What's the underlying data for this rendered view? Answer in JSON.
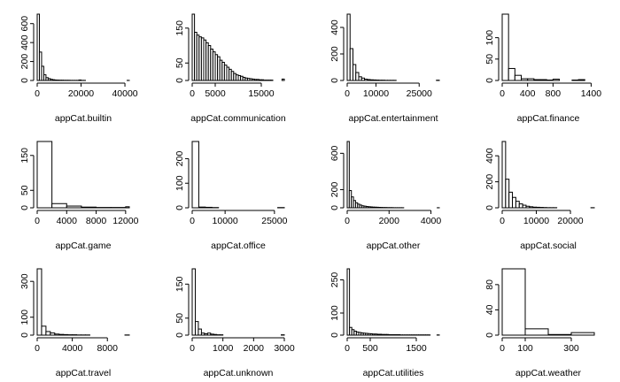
{
  "chart_data": [
    {
      "type": "histogram",
      "xlabel": "appCat.builtin",
      "ylabel": "",
      "xlim": [
        0,
        42000
      ],
      "ylim": [
        0,
        700
      ],
      "xticks": [
        0,
        20000,
        40000
      ],
      "yticks": [
        0,
        200,
        400,
        600
      ],
      "bin_edges": [
        0,
        1000,
        2000,
        3000,
        4000,
        5000,
        6000,
        7000,
        8000,
        9000,
        10000,
        11000,
        12000,
        13000,
        14000,
        15000,
        16000,
        17000,
        18000,
        19000,
        20000,
        21000,
        22000,
        23000,
        24000,
        25000,
        26000,
        27000,
        28000,
        29000,
        30000,
        31000,
        32000,
        33000,
        34000,
        35000,
        36000,
        37000,
        38000,
        39000,
        40000,
        41000,
        42000
      ],
      "counts": [
        700,
        300,
        150,
        60,
        30,
        20,
        12,
        8,
        5,
        4,
        3,
        3,
        2,
        2,
        2,
        1,
        1,
        1,
        1,
        5,
        1,
        1,
        0,
        0,
        0,
        0,
        0,
        0,
        0,
        0,
        0,
        0,
        0,
        0,
        0,
        0,
        0,
        0,
        0,
        0,
        0,
        1
      ]
    },
    {
      "type": "histogram",
      "xlabel": "appCat.communication",
      "ylabel": "",
      "xlim": [
        0,
        20000
      ],
      "ylim": [
        0,
        190
      ],
      "xticks": [
        0,
        5000,
        15000
      ],
      "yticks": [
        0,
        50,
        150
      ],
      "bin_edges": [
        0,
        500,
        1000,
        1500,
        2000,
        2500,
        3000,
        3500,
        4000,
        4500,
        5000,
        5500,
        6000,
        6500,
        7000,
        7500,
        8000,
        8500,
        9000,
        9500,
        10000,
        10500,
        11000,
        11500,
        12000,
        12500,
        13000,
        13500,
        14000,
        14500,
        15000,
        15500,
        16000,
        16500,
        17000,
        17500,
        18000,
        18500,
        19000,
        19500,
        20000
      ],
      "counts": [
        190,
        138,
        130,
        125,
        122,
        116,
        108,
        100,
        90,
        82,
        74,
        68,
        58,
        52,
        44,
        38,
        32,
        26,
        20,
        16,
        14,
        12,
        9,
        7,
        6,
        5,
        4,
        3,
        3,
        2,
        2,
        1,
        1,
        1,
        1,
        0,
        0,
        0,
        0,
        4
      ]
    },
    {
      "type": "histogram",
      "xlabel": "appCat.entertainment",
      "ylabel": "",
      "xlim": [
        0,
        32000
      ],
      "ylim": [
        0,
        500
      ],
      "xticks": [
        0,
        10000,
        25000
      ],
      "yticks": [
        0,
        200,
        400
      ],
      "bin_edges": [
        0,
        1000,
        2000,
        3000,
        4000,
        5000,
        6000,
        7000,
        8000,
        9000,
        10000,
        11000,
        12000,
        13000,
        14000,
        15000,
        16000,
        17000,
        18000,
        19000,
        20000,
        21000,
        22000,
        23000,
        24000,
        25000,
        26000,
        27000,
        28000,
        29000,
        30000,
        31000,
        32000
      ],
      "counts": [
        500,
        240,
        120,
        60,
        28,
        18,
        10,
        7,
        5,
        4,
        3,
        2,
        2,
        1,
        1,
        1,
        1,
        0,
        0,
        0,
        0,
        0,
        0,
        0,
        0,
        0,
        0,
        0,
        0,
        0,
        0,
        2
      ]
    },
    {
      "type": "histogram",
      "xlabel": "appCat.finance",
      "ylabel": "",
      "xlim": [
        0,
        1450
      ],
      "ylim": [
        0,
        155
      ],
      "xticks": [
        0,
        400,
        800,
        1400
      ],
      "yticks": [
        0,
        50,
        100
      ],
      "bin_edges": [
        0,
        100,
        200,
        300,
        400,
        500,
        600,
        700,
        800,
        900,
        1000,
        1100,
        1200,
        1300,
        1400,
        1450
      ],
      "counts": [
        155,
        28,
        12,
        4,
        4,
        2,
        2,
        1,
        3,
        0,
        0,
        1,
        2,
        0,
        0
      ]
    },
    {
      "type": "histogram",
      "xlabel": "appCat.game",
      "ylabel": "",
      "xlim": [
        0,
        12500
      ],
      "ylim": [
        0,
        190
      ],
      "xticks": [
        0,
        4000,
        8000,
        12000
      ],
      "yticks": [
        0,
        50,
        150
      ],
      "bin_edges": [
        0,
        2000,
        4000,
        6000,
        8000,
        10000,
        12000,
        12500
      ],
      "counts": [
        190,
        12,
        5,
        2,
        1,
        1,
        3
      ]
    },
    {
      "type": "histogram",
      "xlabel": "appCat.office",
      "ylabel": "",
      "xlim": [
        0,
        28000
      ],
      "ylim": [
        0,
        270
      ],
      "xticks": [
        0,
        10000,
        25000
      ],
      "yticks": [
        0,
        100,
        200
      ],
      "bin_edges": [
        0,
        2000,
        4000,
        6000,
        8000,
        10000,
        12000,
        14000,
        16000,
        18000,
        20000,
        22000,
        24000,
        26000,
        28000
      ],
      "counts": [
        270,
        3,
        2,
        1,
        0,
        0,
        0,
        0,
        0,
        0,
        0,
        0,
        0,
        1
      ]
    },
    {
      "type": "histogram",
      "xlabel": "appCat.other",
      "ylabel": "",
      "xlim": [
        0,
        4400
      ],
      "ylim": [
        0,
        730
      ],
      "xticks": [
        0,
        2000,
        4000
      ],
      "yticks": [
        0,
        200,
        600
      ],
      "bin_edges": [
        0,
        100,
        200,
        300,
        400,
        500,
        600,
        700,
        800,
        900,
        1000,
        1100,
        1200,
        1300,
        1400,
        1500,
        1600,
        1700,
        1800,
        1900,
        2000,
        2100,
        2200,
        2300,
        2400,
        2500,
        2600,
        2700,
        2800,
        2900,
        3000,
        3100,
        3200,
        3300,
        3400,
        3500,
        3600,
        3700,
        3800,
        3900,
        4000,
        4100,
        4200,
        4300,
        4400
      ],
      "counts": [
        730,
        190,
        120,
        80,
        55,
        40,
        30,
        22,
        18,
        14,
        12,
        10,
        8,
        7,
        6,
        5,
        4,
        3,
        3,
        2,
        2,
        2,
        1,
        1,
        1,
        1,
        1,
        0,
        0,
        0,
        0,
        0,
        0,
        0,
        0,
        0,
        0,
        0,
        0,
        0,
        0,
        0,
        0,
        1
      ]
    },
    {
      "type": "histogram",
      "xlabel": "appCat.social",
      "ylabel": "",
      "xlim": [
        0,
        27000
      ],
      "ylim": [
        0,
        510
      ],
      "xticks": [
        0,
        10000,
        20000
      ],
      "yticks": [
        0,
        200,
        400
      ],
      "bin_edges": [
        0,
        1000,
        2000,
        3000,
        4000,
        5000,
        6000,
        7000,
        8000,
        9000,
        10000,
        11000,
        12000,
        13000,
        14000,
        15000,
        16000,
        17000,
        18000,
        19000,
        20000,
        21000,
        22000,
        23000,
        24000,
        25000,
        26000,
        27000
      ],
      "counts": [
        510,
        220,
        120,
        80,
        50,
        30,
        20,
        12,
        8,
        5,
        4,
        3,
        2,
        1,
        1,
        1,
        0,
        0,
        0,
        0,
        0,
        0,
        0,
        0,
        0,
        0,
        1
      ]
    },
    {
      "type": "histogram",
      "xlabel": "appCat.travel",
      "ylabel": "",
      "xlim": [
        0,
        10500
      ],
      "ylim": [
        0,
        370
      ],
      "xticks": [
        0,
        4000,
        8000
      ],
      "yticks": [
        0,
        100,
        300
      ],
      "bin_edges": [
        0,
        500,
        1000,
        1500,
        2000,
        2500,
        3000,
        3500,
        4000,
        4500,
        5000,
        5500,
        6000,
        6500,
        7000,
        7500,
        8000,
        8500,
        9000,
        9500,
        10000,
        10500
      ],
      "counts": [
        370,
        50,
        20,
        12,
        6,
        4,
        3,
        2,
        2,
        1,
        1,
        1,
        0,
        0,
        0,
        0,
        0,
        0,
        0,
        0,
        1
      ]
    },
    {
      "type": "histogram",
      "xlabel": "appCat.unknown",
      "ylabel": "",
      "xlim": [
        0,
        3000
      ],
      "ylim": [
        0,
        195
      ],
      "xticks": [
        0,
        1000,
        2000,
        3000
      ],
      "yticks": [
        0,
        50,
        150
      ],
      "bin_edges": [
        0,
        100,
        200,
        300,
        400,
        500,
        600,
        700,
        800,
        900,
        1000,
        1100,
        1200,
        1300,
        1400,
        1500,
        1600,
        1700,
        1800,
        1900,
        2000,
        2100,
        2200,
        2300,
        2400,
        2500,
        2600,
        2700,
        2800,
        2900,
        3000
      ],
      "counts": [
        195,
        40,
        18,
        6,
        4,
        6,
        3,
        2,
        1,
        1,
        0,
        0,
        0,
        0,
        0,
        0,
        0,
        0,
        0,
        0,
        0,
        0,
        0,
        0,
        0,
        0,
        0,
        0,
        0,
        1
      ]
    },
    {
      "type": "histogram",
      "xlabel": "appCat.utilities",
      "ylabel": "",
      "xlim": [
        0,
        2000
      ],
      "ylim": [
        0,
        300
      ],
      "xticks": [
        0,
        500,
        1500
      ],
      "yticks": [
        0,
        100,
        250
      ],
      "bin_edges": [
        0,
        50,
        100,
        150,
        200,
        250,
        300,
        350,
        400,
        450,
        500,
        550,
        600,
        650,
        700,
        750,
        800,
        850,
        900,
        950,
        1000,
        1050,
        1100,
        1150,
        1200,
        1250,
        1300,
        1350,
        1400,
        1450,
        1500,
        1550,
        1600,
        1650,
        1700,
        1750,
        1800,
        1850,
        1900,
        1950,
        2000
      ],
      "counts": [
        300,
        35,
        25,
        18,
        14,
        12,
        10,
        9,
        8,
        7,
        6,
        5,
        5,
        4,
        4,
        3,
        3,
        3,
        2,
        2,
        2,
        2,
        2,
        1,
        1,
        1,
        1,
        1,
        1,
        1,
        1,
        1,
        1,
        1,
        1,
        1,
        0,
        0,
        0,
        1
      ]
    },
    {
      "type": "histogram",
      "xlabel": "appCat.weather",
      "ylabel": "",
      "xlim": [
        0,
        400
      ],
      "ylim": [
        0,
        105
      ],
      "xticks": [
        0,
        100,
        300
      ],
      "yticks": [
        0,
        40,
        80
      ],
      "bin_edges": [
        0,
        100,
        200,
        300,
        400
      ],
      "counts": [
        105,
        10,
        1,
        4
      ]
    }
  ]
}
